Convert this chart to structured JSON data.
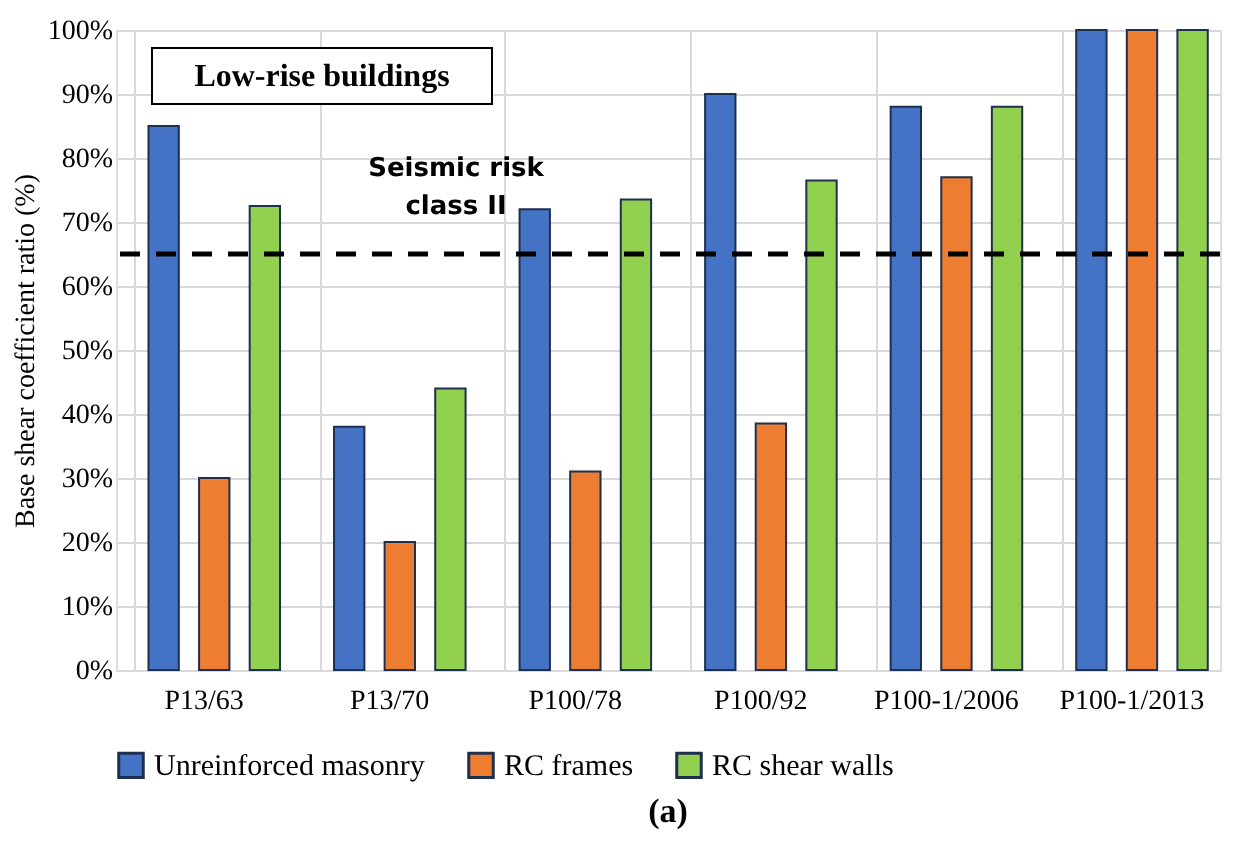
{
  "chart_data": {
    "type": "bar",
    "categories": [
      "P13/63",
      "P13/70",
      "P100/78",
      "P100/92",
      "P100-1/2006",
      "P100-1/2013"
    ],
    "series": [
      {
        "name": "Unreinforced masonry",
        "color": "#4472c4",
        "values": [
          85,
          38,
          72,
          90,
          88,
          100
        ]
      },
      {
        "name": "RC frames",
        "color": "#ed7d31",
        "values": [
          30,
          20,
          31,
          38.5,
          77,
          100
        ]
      },
      {
        "name": "RC shear walls",
        "color": "#92d050",
        "values": [
          72.5,
          44,
          73.5,
          76.5,
          88,
          100
        ]
      }
    ],
    "ylabel": "Base shear coefficient ratio (%)",
    "ylim": [
      0,
      100
    ],
    "yticks": [
      {
        "value": 0,
        "label": "0%"
      },
      {
        "value": 10,
        "label": "10%"
      },
      {
        "value": 20,
        "label": "20%"
      },
      {
        "value": 30,
        "label": "30%"
      },
      {
        "value": 40,
        "label": "40%"
      },
      {
        "value": 50,
        "label": "50%"
      },
      {
        "value": 60,
        "label": "60%"
      },
      {
        "value": 70,
        "label": "70%"
      },
      {
        "value": 80,
        "label": "80%"
      },
      {
        "value": 90,
        "label": "90%"
      },
      {
        "value": 100,
        "label": "100%"
      }
    ],
    "ref_lines": [
      {
        "axis": "y",
        "value": 65,
        "label": "Seismic risk class II",
        "color": "#000000",
        "line_style": "dashed"
      }
    ],
    "annotations": [
      "Low-rise buildings",
      "(a)"
    ],
    "grid": true,
    "legend": "bottom"
  }
}
